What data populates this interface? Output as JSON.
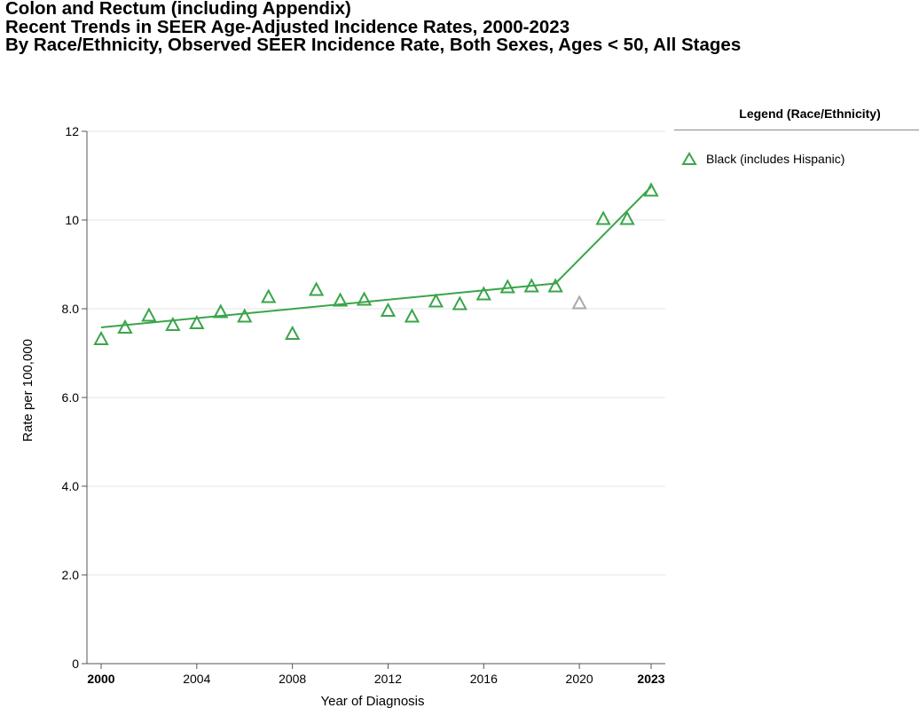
{
  "title_lines": [
    "Colon and Rectum (including Appendix)",
    "Recent Trends in SEER Age-Adjusted Incidence Rates, 2000-2023",
    "By Race/Ethnicity, Observed SEER Incidence Rate, Both Sexes, Ages < 50, All Stages"
  ],
  "legend": {
    "title": "Legend (Race/Ethnicity)",
    "items": [
      {
        "label": "Black (includes Hispanic)",
        "color": "#3aa54a"
      }
    ]
  },
  "chart_data": {
    "type": "scatter",
    "title": "Colon and Rectum (including Appendix)",
    "subtitle": "Recent Trends in SEER Age-Adjusted Incidence Rates, 2000-2023 By Race/Ethnicity, Observed SEER Incidence Rate, Both Sexes, Ages < 50, All Stages",
    "xlabel": "Year of Diagnosis",
    "ylabel": "Rate per 100,000",
    "xlim": [
      2000,
      2023
    ],
    "ylim": [
      0,
      12
    ],
    "x_ticks": [
      {
        "value": 2000,
        "label": "2000",
        "bold": true
      },
      {
        "value": 2004,
        "label": "2004",
        "bold": false
      },
      {
        "value": 2008,
        "label": "2008",
        "bold": false
      },
      {
        "value": 2012,
        "label": "2012",
        "bold": false
      },
      {
        "value": 2016,
        "label": "2016",
        "bold": false
      },
      {
        "value": 2020,
        "label": "2020",
        "bold": false
      },
      {
        "value": 2023,
        "label": "2023",
        "bold": true
      }
    ],
    "y_ticks": [
      {
        "value": 0,
        "label": "0"
      },
      {
        "value": 2,
        "label": "2.0"
      },
      {
        "value": 4,
        "label": "4.0"
      },
      {
        "value": 6,
        "label": "6.0"
      },
      {
        "value": 8,
        "label": "8.0"
      },
      {
        "value": 10,
        "label": "10"
      },
      {
        "value": 12,
        "label": "12"
      }
    ],
    "grid": true,
    "legend_position": "right",
    "series": [
      {
        "name": "Black (includes Hispanic)",
        "color": "#3aa54a",
        "excluded_color": "#a9a9a9",
        "points": [
          {
            "x": 2000,
            "y": 7.32
          },
          {
            "x": 2001,
            "y": 7.58
          },
          {
            "x": 2002,
            "y": 7.85
          },
          {
            "x": 2003,
            "y": 7.64
          },
          {
            "x": 2004,
            "y": 7.68
          },
          {
            "x": 2005,
            "y": 7.93
          },
          {
            "x": 2006,
            "y": 7.83
          },
          {
            "x": 2007,
            "y": 8.27
          },
          {
            "x": 2008,
            "y": 7.44
          },
          {
            "x": 2009,
            "y": 8.43
          },
          {
            "x": 2010,
            "y": 8.19
          },
          {
            "x": 2011,
            "y": 8.21
          },
          {
            "x": 2012,
            "y": 7.96
          },
          {
            "x": 2013,
            "y": 7.83
          },
          {
            "x": 2014,
            "y": 8.17
          },
          {
            "x": 2015,
            "y": 8.11
          },
          {
            "x": 2016,
            "y": 8.33
          },
          {
            "x": 2017,
            "y": 8.49
          },
          {
            "x": 2018,
            "y": 8.51
          },
          {
            "x": 2019,
            "y": 8.51
          },
          {
            "x": 2020,
            "y": 8.13,
            "excluded": true
          },
          {
            "x": 2021,
            "y": 10.03
          },
          {
            "x": 2022,
            "y": 10.03
          },
          {
            "x": 2023,
            "y": 10.67
          }
        ],
        "trend": [
          {
            "x": 2000,
            "y": 7.58
          },
          {
            "x": 2019,
            "y": 8.57
          },
          {
            "x": 2023,
            "y": 10.75
          }
        ]
      }
    ]
  }
}
